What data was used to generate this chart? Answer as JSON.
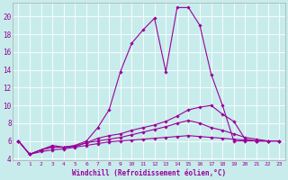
{
  "xlabel": "Windchill (Refroidissement éolien,°C)",
  "bg_color": "#c8ecec",
  "grid_color": "#b0d8d8",
  "line_color": "#990099",
  "xlim": [
    -0.5,
    23.5
  ],
  "ylim": [
    3.8,
    21.5
  ],
  "yticks": [
    4,
    6,
    8,
    10,
    12,
    14,
    16,
    18,
    20
  ],
  "xticks": [
    0,
    1,
    2,
    3,
    4,
    5,
    6,
    7,
    8,
    9,
    10,
    11,
    12,
    13,
    14,
    15,
    16,
    17,
    18,
    19,
    20,
    21,
    22,
    23
  ],
  "series": [
    {
      "x": [
        0,
        1,
        2,
        3,
        4,
        5,
        6,
        7,
        8,
        9,
        10,
        11,
        12,
        13,
        14,
        15,
        16,
        17,
        18,
        19,
        20,
        21,
        22
      ],
      "y": [
        6.0,
        4.5,
        5.0,
        5.5,
        5.3,
        5.5,
        6.0,
        7.5,
        9.5,
        13.8,
        17.0,
        18.5,
        19.8,
        13.8,
        21.0,
        21.0,
        19.0,
        13.5,
        10.0,
        6.0,
        6.0,
        6.0,
        6.0
      ]
    },
    {
      "x": [
        0,
        1,
        2,
        3,
        4,
        5,
        6,
        7,
        8,
        9,
        10,
        11,
        12,
        13,
        14,
        15,
        16,
        17,
        18,
        19,
        20,
        21,
        22,
        23
      ],
      "y": [
        6.0,
        4.5,
        5.0,
        5.3,
        5.3,
        5.4,
        5.8,
        6.3,
        6.6,
        6.8,
        7.2,
        7.5,
        7.8,
        8.2,
        8.8,
        9.5,
        9.8,
        10.0,
        9.0,
        8.2,
        6.2,
        6.0,
        6.0,
        6.0
      ]
    },
    {
      "x": [
        0,
        1,
        2,
        3,
        4,
        5,
        6,
        7,
        8,
        9,
        10,
        11,
        12,
        13,
        14,
        15,
        16,
        17,
        18,
        19,
        20,
        21,
        22,
        23
      ],
      "y": [
        6.0,
        4.5,
        5.0,
        5.3,
        5.3,
        5.4,
        5.8,
        6.0,
        6.2,
        6.4,
        6.7,
        7.0,
        7.3,
        7.6,
        8.0,
        8.3,
        8.0,
        7.5,
        7.2,
        6.8,
        6.4,
        6.2,
        6.0,
        6.0
      ]
    },
    {
      "x": [
        0,
        1,
        2,
        3,
        4,
        5,
        6,
        7,
        8,
        9,
        10,
        11,
        12,
        13,
        14,
        15,
        16,
        17,
        18,
        19,
        20,
        21,
        22,
        23
      ],
      "y": [
        6.0,
        4.5,
        4.8,
        5.0,
        5.1,
        5.3,
        5.5,
        5.7,
        5.9,
        6.0,
        6.1,
        6.2,
        6.3,
        6.4,
        6.5,
        6.6,
        6.5,
        6.4,
        6.3,
        6.2,
        6.1,
        6.0,
        6.0,
        6.0
      ]
    }
  ]
}
